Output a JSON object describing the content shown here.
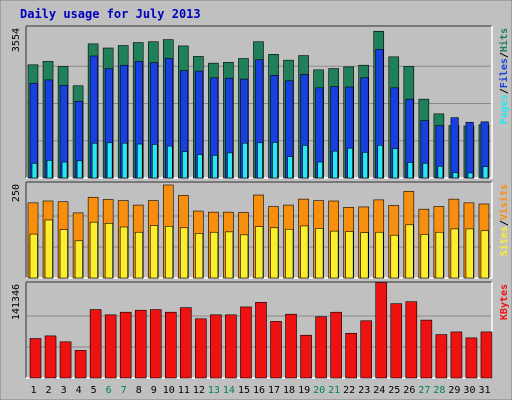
{
  "chart_data": {
    "type": "bar",
    "title": "Daily usage for July 2013",
    "categories": [
      "1",
      "2",
      "3",
      "4",
      "5",
      "6",
      "7",
      "8",
      "9",
      "10",
      "11",
      "12",
      "13",
      "14",
      "15",
      "16",
      "17",
      "18",
      "19",
      "20",
      "21",
      "22",
      "23",
      "24",
      "25",
      "26",
      "27",
      "28",
      "29",
      "30",
      "31"
    ],
    "weekend_days": [
      "6",
      "7",
      "13",
      "14",
      "20",
      "21",
      "27",
      "28"
    ],
    "panels": [
      {
        "name": "hits-files-pages",
        "max_label": "3554",
        "ymax": 3554,
        "legend": [
          "Pages",
          "/",
          "Files",
          "/",
          "Hits"
        ],
        "series": [
          {
            "name": "Hits",
            "color": "#20805a",
            "values": [
              2700,
              2780,
              2660,
              2200,
              3200,
              3100,
              3160,
              3230,
              3250,
              3300,
              3150,
              2900,
              2740,
              2760,
              2850,
              3250,
              2950,
              2810,
              2920,
              2580,
              2610,
              2650,
              2690,
              3500,
              2890,
              2660,
              1880,
              1530,
              1250,
              1240,
              1270
            ]
          },
          {
            "name": "Files",
            "color": "#1a3fe0",
            "values": [
              2260,
              2340,
              2210,
              1830,
              2910,
              2610,
              2690,
              2780,
              2750,
              2850,
              2560,
              2550,
              2390,
              2380,
              2360,
              2820,
              2450,
              2320,
              2470,
              2150,
              2180,
              2170,
              2390,
              3070,
              2150,
              1880,
              1370,
              1250,
              1440,
              1330,
              1340
            ]
          },
          {
            "name": "Pages",
            "color": "#28e6f2",
            "values": [
              350,
              420,
              380,
              410,
              830,
              840,
              830,
              810,
              800,
              760,
              630,
              560,
              540,
              600,
              830,
              840,
              850,
              510,
              780,
              380,
              640,
              710,
              610,
              780,
              700,
              370,
              350,
              280,
              130,
              120,
              270
            ]
          }
        ]
      },
      {
        "name": "visits-sites",
        "max_label": "250",
        "ymax": 250,
        "legend": [
          "Sites",
          "/",
          "Visits"
        ],
        "series": [
          {
            "name": "Visits",
            "color": "#f88e0d",
            "values": [
              202,
              207,
              205,
              175,
              217,
              211,
              208,
              196,
              208,
              250,
              222,
              180,
              177,
              177,
              176,
              223,
              192,
              196,
              212,
              208,
              207,
              190,
              191,
              210,
              195,
              233,
              185,
              192,
              212,
              202,
              199
            ]
          },
          {
            "name": "Sites",
            "color": "#fbef2d",
            "values": [
              118,
              156,
              130,
              100,
              150,
              147,
              137,
              123,
              141,
              139,
              135,
              120,
              123,
              124,
              116,
              138,
              135,
              131,
              140,
              133,
              126,
              125,
              122,
              123,
              115,
              143,
              117,
              123,
              132,
              132,
              127
            ]
          }
        ]
      },
      {
        "name": "kbytes",
        "max_label": "141346",
        "ymax": 141346,
        "legend": [
          "KBytes"
        ],
        "series": [
          {
            "name": "KBytes",
            "color": "#ee1212",
            "values": [
              60000,
              64000,
              55000,
              42000,
              104000,
              96000,
              100000,
              103000,
              104000,
              100000,
              107000,
              90000,
              96000,
              96000,
              108000,
              115000,
              86000,
              97000,
              65000,
              93000,
              100000,
              68000,
              87000,
              145000,
              113000,
              116000,
              88000,
              66000,
              70000,
              61000,
              70000
            ]
          }
        ]
      }
    ]
  }
}
